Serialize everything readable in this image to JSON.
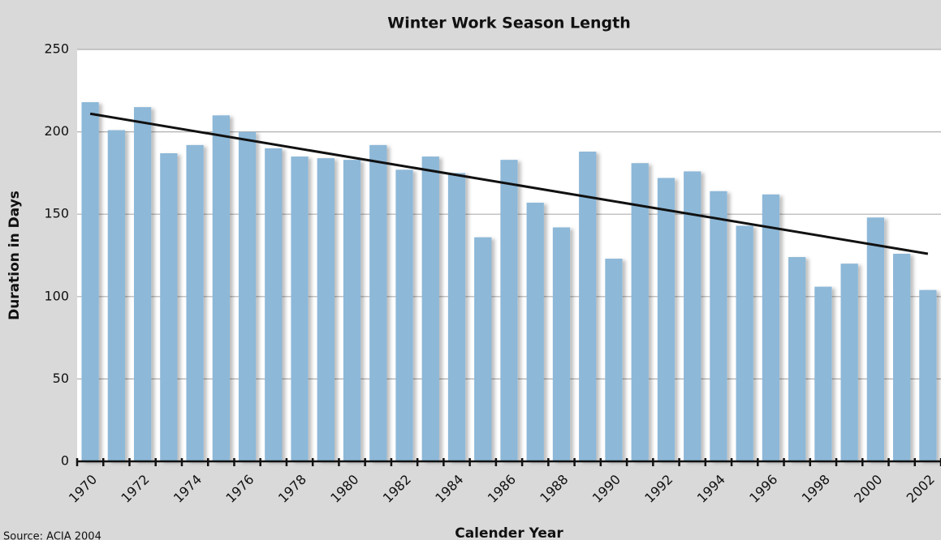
{
  "chart_data": {
    "type": "bar",
    "title": "Winter Work Season Length",
    "x_label": "Calender Year",
    "y_label": "Duration in Days",
    "source": "Source: ACIA 2004",
    "categories": [
      "1970",
      null,
      "1972",
      null,
      "1974",
      null,
      "1976",
      null,
      "1978",
      null,
      "1980",
      null,
      "1982",
      null,
      "1984",
      null,
      "1986",
      null,
      "1988",
      null,
      "1990",
      null,
      "1992",
      null,
      "1994",
      null,
      "1996",
      null,
      "1998",
      null,
      "2000",
      null,
      "2002"
    ],
    "values": [
      218,
      201,
      215,
      187,
      192,
      210,
      200,
      190,
      185,
      184,
      183,
      192,
      177,
      185,
      175,
      136,
      183,
      157,
      142,
      188,
      123,
      181,
      172,
      176,
      164,
      143,
      162,
      124,
      106,
      120,
      148,
      126,
      104
    ],
    "color": "#8db8d8",
    "trendline": {
      "values": [
        211,
        126
      ],
      "color": "#111111"
    },
    "ylim": [
      0,
      250
    ],
    "yticks": [
      0,
      50,
      100,
      150,
      200,
      250
    ],
    "grid": true
  }
}
